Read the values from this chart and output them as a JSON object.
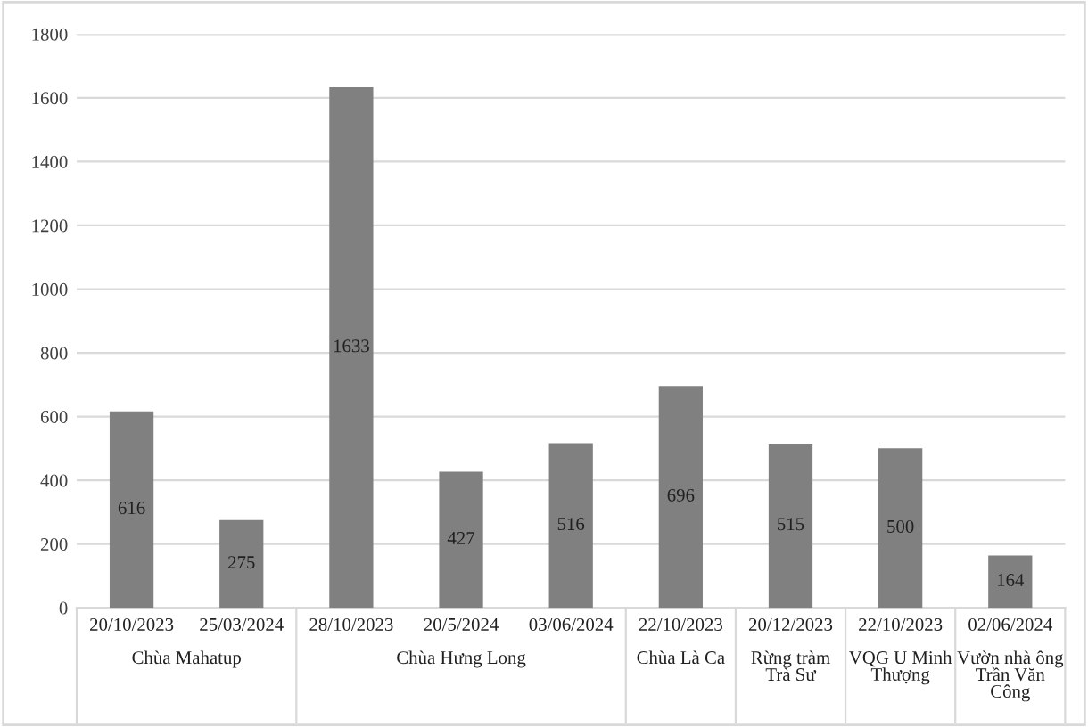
{
  "chart_data": {
    "type": "bar",
    "categories": [
      "20/10/2023",
      "25/03/2024",
      "28/10/2023",
      "20/5/2024",
      "03/06/2024",
      "22/10/2023",
      "20/12/2023",
      "22/10/2023",
      "02/06/2024"
    ],
    "values": [
      616,
      275,
      1633,
      427,
      516,
      696,
      515,
      500,
      164
    ],
    "color": "#808080",
    "ylim": [
      0,
      1800
    ],
    "yticks": [
      0,
      200,
      400,
      600,
      800,
      1000,
      1200,
      1400,
      1600,
      1800
    ],
    "grid": "y",
    "data_labels": true,
    "annotations": [
      "Chùa Mahatup",
      "Chùa Hưng Long",
      "Chùa Là Ca",
      "Rừng tràm\nTrà Sư",
      "VQG U Minh\nThượng",
      "Vườn nhà ông\nTrần Văn\nCông"
    ]
  }
}
